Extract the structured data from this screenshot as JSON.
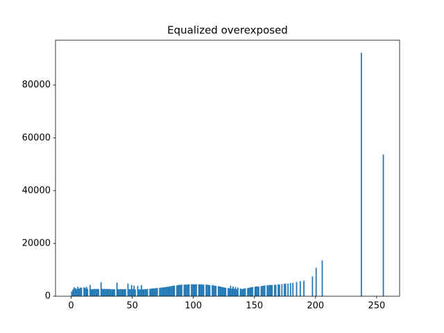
{
  "chart_data": {
    "type": "histogram",
    "title": "Equalized overexposed",
    "color": "#1f77b4",
    "bins": [
      0,
      1,
      2,
      3,
      4,
      5,
      6,
      7,
      8,
      9,
      10,
      11,
      12,
      13,
      14,
      15,
      16,
      17,
      18,
      19,
      20,
      21,
      22,
      23,
      24,
      25,
      26,
      27,
      28,
      29,
      30,
      31,
      32,
      33,
      34,
      35,
      36,
      37,
      38,
      39,
      40,
      41,
      42,
      43,
      44,
      45,
      46,
      47,
      48,
      49,
      50,
      51,
      52,
      53,
      54,
      55,
      56,
      57,
      58,
      59,
      60,
      61,
      62,
      63,
      64,
      65,
      66,
      67,
      68,
      69,
      70,
      71,
      72,
      73,
      74,
      75,
      76,
      77,
      78,
      79,
      80,
      81,
      82,
      83,
      84,
      85,
      86,
      87,
      88,
      89,
      90,
      91,
      92,
      93,
      94,
      95,
      96,
      97,
      98,
      99,
      100,
      101,
      102,
      103,
      104,
      105,
      106,
      107,
      108,
      109,
      110,
      111,
      112,
      113,
      114,
      115,
      116,
      117,
      118,
      119,
      120,
      121,
      122,
      123,
      124,
      125,
      126,
      127,
      128,
      129,
      130,
      131,
      132,
      133,
      134,
      135,
      136,
      137,
      138,
      139,
      140,
      141,
      142,
      143,
      144,
      145,
      146,
      147,
      148,
      149,
      150,
      151,
      152,
      153,
      154,
      155,
      156,
      157,
      158,
      159,
      160,
      161,
      162,
      163,
      164,
      165,
      166,
      167,
      168,
      169,
      170,
      171,
      172,
      173,
      174,
      175,
      176,
      177,
      178,
      179,
      180,
      181,
      182,
      183,
      184,
      185,
      186,
      187,
      188,
      189,
      190,
      191,
      192,
      193,
      194,
      195,
      196,
      197,
      198,
      199,
      200,
      201,
      202,
      203,
      204,
      205,
      206,
      207,
      208,
      209,
      210,
      211,
      212,
      213,
      214,
      215,
      216,
      217,
      218,
      219,
      220,
      221,
      222,
      223,
      224,
      225,
      226,
      227,
      228,
      229,
      230,
      231,
      232,
      233,
      234,
      235,
      236,
      237,
      238,
      239,
      240,
      241,
      242,
      243,
      244,
      245,
      246,
      247,
      248,
      249,
      250,
      251,
      252,
      253,
      254,
      255,
      256
    ],
    "values": [
      1800,
      2600,
      3400,
      3100,
      2700,
      3600,
      2900,
      3300,
      3200,
      0,
      3400,
      3100,
      3600,
      2800,
      0,
      4300,
      2600,
      2700,
      2700,
      2800,
      2700,
      2800,
      2700,
      0,
      5300,
      2800,
      2700,
      2800,
      2700,
      2800,
      2700,
      2800,
      2700,
      2600,
      2700,
      2600,
      0,
      5200,
      2700,
      2600,
      2700,
      2700,
      2600,
      2700,
      2700,
      0,
      4800,
      2700,
      2700,
      4200,
      2700,
      4000,
      2600,
      0,
      3900,
      2600,
      2600,
      4200,
      2600,
      2600,
      2700,
      2700,
      2800,
      0,
      2800,
      2900,
      2900,
      3000,
      3000,
      3100,
      3100,
      0,
      3200,
      3300,
      3300,
      3400,
      3400,
      3500,
      3600,
      3600,
      3700,
      3800,
      3900,
      4000,
      4000,
      0,
      4100,
      4200,
      4300,
      4300,
      4400,
      0,
      4400,
      4400,
      4400,
      4500,
      4500,
      0,
      4500,
      4500,
      4500,
      4500,
      4500,
      0,
      4500,
      4500,
      4500,
      4400,
      4400,
      0,
      4400,
      4400,
      4300,
      4200,
      0,
      4200,
      4100,
      4000,
      3900,
      0,
      3800,
      3700,
      3600,
      3500,
      3400,
      3300,
      3200,
      0,
      3100,
      3000,
      4000,
      2900,
      3700,
      2800,
      3500,
      2700,
      3300,
      0,
      3000,
      2700,
      2800,
      2900,
      3000,
      0,
      3100,
      3200,
      3300,
      3400,
      3500,
      0,
      3600,
      3700,
      3700,
      3600,
      0,
      3800,
      3900,
      4000,
      4100,
      0,
      4200,
      4100,
      4300,
      4300,
      4200,
      0,
      4300,
      4400,
      0,
      4500,
      4400,
      0,
      4600,
      0,
      4700,
      4800,
      0,
      4800,
      0,
      5000,
      0,
      5100,
      0,
      0,
      5400,
      0,
      0,
      5700,
      0,
      0,
      5900,
      0,
      0,
      0,
      0,
      0,
      0,
      7500,
      0,
      0,
      10800,
      0,
      0,
      0,
      0,
      13600,
      0,
      0,
      0,
      0,
      0,
      0,
      0,
      0,
      0,
      0,
      0,
      0,
      0,
      0,
      0,
      0,
      0,
      0,
      0,
      0,
      0,
      0,
      0,
      0,
      0,
      0,
      0,
      0,
      0,
      0,
      0,
      92300,
      0,
      0,
      0,
      0,
      0,
      0,
      0,
      0,
      0,
      0,
      0,
      0,
      0,
      0,
      0,
      0,
      0,
      53700
    ],
    "xlim": [
      -12.8,
      268.8
    ],
    "xticks": [
      0,
      50,
      100,
      150,
      200,
      250
    ],
    "ylim": [
      0,
      97000
    ],
    "yticks": [
      0,
      20000,
      40000,
      60000,
      80000
    ]
  }
}
